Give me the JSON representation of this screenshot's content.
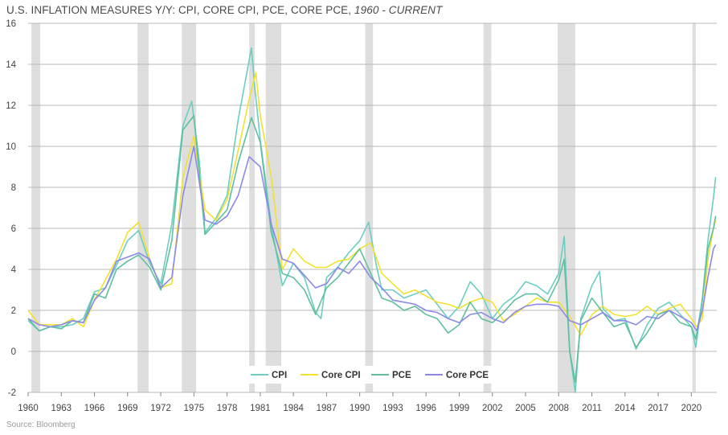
{
  "title": {
    "main": "U.S. INFLATION MEASURES Y/Y: CPI, CORE CPI, PCE, CORE PCE, ",
    "range": "1960 - CURRENT"
  },
  "source": "Source: Bloomberg",
  "chart_data": {
    "type": "line",
    "title": "U.S. INFLATION MEASURES Y/Y: CPI, CORE CPI, PCE, CORE PCE, 1960 - CURRENT",
    "xlabel": "",
    "ylabel": "",
    "xlim": [
      1960,
      2022.3
    ],
    "ylim": [
      -2,
      16
    ],
    "yticks": [
      -2,
      0,
      2,
      4,
      6,
      8,
      10,
      12,
      14,
      16
    ],
    "xticks": [
      1960,
      1963,
      1966,
      1969,
      1972,
      1975,
      1978,
      1981,
      1984,
      1987,
      1990,
      1993,
      1996,
      1999,
      2002,
      2005,
      2008,
      2011,
      2014,
      2017,
      2020
    ],
    "grid": "horizontal",
    "legend_position": "bottom-center",
    "recessions": [
      [
        1960.3,
        1961.1
      ],
      [
        1969.9,
        1970.9
      ],
      [
        1973.9,
        1975.2
      ],
      [
        1980.0,
        1980.5
      ],
      [
        1981.5,
        1982.9
      ],
      [
        1990.5,
        1991.2
      ],
      [
        2001.2,
        2001.9
      ],
      [
        2007.9,
        2009.5
      ],
      [
        2020.1,
        2020.4
      ]
    ],
    "series": [
      {
        "name": "CPI",
        "color": "#6ccdc3",
        "x": [
          1960,
          1961,
          1962,
          1963,
          1964,
          1965,
          1966,
          1967,
          1968,
          1969,
          1970,
          1971,
          1972,
          1973,
          1974,
          1974.8,
          1975.5,
          1976,
          1977,
          1978,
          1979,
          1980.2,
          1980.5,
          1981,
          1982,
          1983,
          1984,
          1985,
          1986,
          1986.5,
          1987,
          1988,
          1989,
          1990,
          1990.8,
          1991.5,
          1992,
          1993,
          1994,
          1995,
          1996,
          1997,
          1998,
          1999,
          2000,
          2001,
          2002,
          2003,
          2004,
          2005,
          2006,
          2007,
          2008,
          2008.5,
          2009,
          2009.5,
          2010,
          2011,
          2011.7,
          2012,
          2013,
          2014,
          2015,
          2016,
          2017,
          2018,
          2019,
          2020,
          2020.4,
          2021,
          2021.5,
          2022,
          2022.2
        ],
        "y": [
          1.5,
          1.0,
          1.2,
          1.2,
          1.3,
          1.6,
          2.9,
          3.1,
          4.2,
          5.4,
          5.9,
          4.3,
          3.3,
          6.2,
          11.0,
          12.2,
          9.2,
          5.8,
          6.5,
          7.6,
          11.3,
          14.8,
          12.9,
          10.3,
          6.2,
          3.2,
          4.3,
          3.6,
          1.9,
          1.6,
          3.6,
          4.1,
          4.8,
          5.4,
          6.3,
          4.2,
          3.0,
          3.0,
          2.6,
          2.8,
          3.0,
          2.3,
          1.6,
          2.2,
          3.4,
          2.8,
          1.6,
          2.3,
          2.7,
          3.4,
          3.2,
          2.8,
          3.8,
          5.6,
          0.0,
          -2.0,
          1.6,
          3.2,
          3.9,
          2.1,
          1.5,
          1.6,
          0.1,
          1.3,
          2.1,
          2.4,
          1.8,
          1.2,
          0.2,
          2.6,
          5.4,
          7.5,
          8.5
        ]
      },
      {
        "name": "Core CPI",
        "color": "#f2e12f",
        "x": [
          1960,
          1961,
          1962,
          1963,
          1964,
          1965,
          1966,
          1967,
          1968,
          1969,
          1970,
          1971,
          1972,
          1973,
          1974,
          1975,
          1976,
          1977,
          1978,
          1979,
          1980,
          1980.6,
          1981,
          1982,
          1983,
          1984,
          1985,
          1986,
          1987,
          1988,
          1989,
          1990,
          1991,
          1992,
          1993,
          1994,
          1995,
          1996,
          1997,
          1998,
          1999,
          2000,
          2001,
          2002,
          2003,
          2004,
          2005,
          2006,
          2007,
          2008,
          2009,
          2010,
          2011,
          2012,
          2013,
          2014,
          2015,
          2016,
          2017,
          2018,
          2019,
          2020,
          2020.5,
          2021,
          2021.5,
          2022,
          2022.2
        ],
        "y": [
          2.0,
          1.3,
          1.3,
          1.3,
          1.6,
          1.2,
          2.5,
          3.5,
          4.5,
          5.8,
          6.3,
          4.5,
          3.1,
          3.3,
          8.5,
          10.5,
          6.9,
          6.4,
          7.4,
          9.8,
          12.3,
          13.6,
          11.5,
          8.5,
          4.0,
          5.0,
          4.4,
          4.1,
          4.1,
          4.4,
          4.5,
          5.0,
          5.3,
          3.8,
          3.3,
          2.8,
          3.0,
          2.7,
          2.4,
          2.3,
          2.1,
          2.4,
          2.6,
          2.4,
          1.5,
          1.8,
          2.2,
          2.6,
          2.4,
          2.4,
          1.7,
          0.8,
          1.8,
          2.2,
          1.8,
          1.7,
          1.8,
          2.2,
          1.8,
          2.1,
          2.3,
          1.6,
          1.2,
          1.6,
          4.5,
          6.0,
          6.4
        ]
      },
      {
        "name": "PCE",
        "color": "#5fbf9e",
        "x": [
          1960,
          1961,
          1962,
          1963,
          1964,
          1965,
          1966,
          1967,
          1968,
          1969,
          1970,
          1971,
          1972,
          1973,
          1974,
          1975,
          1976,
          1977,
          1978,
          1979,
          1980.2,
          1981,
          1982,
          1983,
          1984,
          1985,
          1986,
          1987,
          1988,
          1989,
          1990,
          1991,
          1992,
          1993,
          1994,
          1995,
          1996,
          1997,
          1998,
          1999,
          2000,
          2001,
          2002,
          2003,
          2004,
          2005,
          2006,
          2007,
          2008,
          2008.5,
          2009,
          2009.5,
          2010,
          2011,
          2012,
          2013,
          2014,
          2015,
          2016,
          2017,
          2018,
          2019,
          2020,
          2020.4,
          2021,
          2021.5,
          2022,
          2022.2
        ],
        "y": [
          1.6,
          1.0,
          1.2,
          1.1,
          1.5,
          1.4,
          2.8,
          2.6,
          4.0,
          4.4,
          4.7,
          4.1,
          3.0,
          5.4,
          10.8,
          11.5,
          5.7,
          6.3,
          6.9,
          9.2,
          11.4,
          10.2,
          5.8,
          3.8,
          3.6,
          3.0,
          1.8,
          3.1,
          3.6,
          4.3,
          5.0,
          3.8,
          2.6,
          2.4,
          2.0,
          2.2,
          1.8,
          1.6,
          0.9,
          1.3,
          2.4,
          1.6,
          1.4,
          1.9,
          2.5,
          2.8,
          2.8,
          2.4,
          3.5,
          4.5,
          0.0,
          -1.5,
          1.5,
          2.6,
          1.9,
          1.2,
          1.4,
          0.2,
          0.9,
          1.8,
          2.0,
          1.4,
          1.2,
          0.6,
          2.5,
          5.0,
          6.0,
          6.6
        ]
      },
      {
        "name": "Core PCE",
        "color": "#8c88e8",
        "x": [
          1960,
          1961,
          1962,
          1963,
          1964,
          1965,
          1966,
          1967,
          1968,
          1969,
          1970,
          1971,
          1972,
          1973,
          1974,
          1975,
          1976,
          1977,
          1978,
          1979,
          1980,
          1981,
          1982,
          1983,
          1984,
          1985,
          1986,
          1987,
          1988,
          1989,
          1990,
          1991,
          1992,
          1993,
          1994,
          1995,
          1996,
          1997,
          1998,
          1999,
          2000,
          2001,
          2002,
          2003,
          2004,
          2005,
          2006,
          2007,
          2008,
          2009,
          2010,
          2011,
          2012,
          2013,
          2014,
          2015,
          2016,
          2017,
          2018,
          2019,
          2020,
          2020.5,
          2021,
          2021.5,
          2022,
          2022.2
        ],
        "y": [
          1.6,
          1.3,
          1.2,
          1.3,
          1.5,
          1.4,
          2.5,
          3.1,
          4.4,
          4.6,
          4.8,
          4.5,
          3.1,
          3.6,
          7.6,
          10.0,
          6.4,
          6.2,
          6.6,
          7.6,
          9.5,
          9.0,
          6.2,
          4.5,
          4.3,
          3.7,
          3.1,
          3.3,
          4.1,
          3.8,
          4.4,
          3.6,
          3.1,
          2.5,
          2.4,
          2.3,
          2.0,
          1.9,
          1.6,
          1.4,
          1.8,
          1.9,
          1.6,
          1.4,
          1.9,
          2.2,
          2.3,
          2.3,
          2.2,
          1.5,
          1.3,
          1.6,
          1.9,
          1.5,
          1.5,
          1.3,
          1.7,
          1.6,
          2.0,
          1.7,
          1.4,
          1.0,
          2.0,
          3.6,
          5.0,
          5.2
        ]
      }
    ]
  }
}
